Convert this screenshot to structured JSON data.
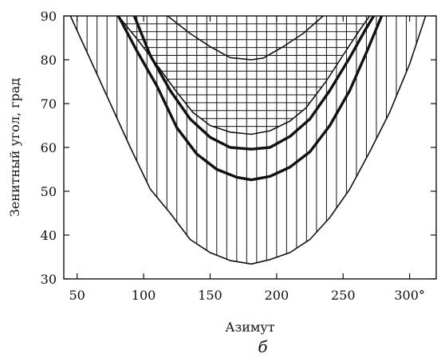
{
  "chart_data": {
    "type": "area",
    "title": "",
    "xlabel": "Азимут",
    "ylabel": "Зенитный угол, град",
    "panel_label": "б",
    "xlim": [
      40,
      320
    ],
    "ylim": [
      30,
      90
    ],
    "xticks": [
      50,
      100,
      150,
      200,
      250,
      300
    ],
    "xtick_labels": [
      "50",
      "100",
      "150",
      "200",
      "250",
      "300°"
    ],
    "yticks": [
      30,
      40,
      50,
      60,
      70,
      80,
      90
    ],
    "ytick_labels": [
      "30",
      "40",
      "50",
      "60",
      "70",
      "80",
      "90"
    ],
    "grid": false,
    "legend": "none",
    "color": "#111111",
    "series": [
      {
        "style": "thin-boundary",
        "hatch": "vertical",
        "points": [
          [
            45,
            90
          ],
          [
            60,
            80
          ],
          [
            75,
            70
          ],
          [
            90,
            60
          ],
          [
            105,
            50.5
          ],
          [
            120,
            45
          ],
          [
            135,
            39
          ],
          [
            150,
            36
          ],
          [
            165,
            34.2
          ],
          [
            181,
            33.4
          ],
          [
            195,
            34.4
          ],
          [
            210,
            36
          ],
          [
            225,
            39
          ],
          [
            240,
            44
          ],
          [
            255,
            50.5
          ],
          [
            270,
            59
          ],
          [
            285,
            68
          ],
          [
            300,
            79
          ],
          [
            312,
            90
          ]
        ]
      },
      {
        "style": "thin-boundary",
        "hatch": "horizontal",
        "points": [
          [
            81,
            90
          ],
          [
            97,
            84
          ],
          [
            112,
            78
          ],
          [
            124,
            73
          ],
          [
            137,
            68
          ],
          [
            150,
            65
          ],
          [
            165,
            63.5
          ],
          [
            181,
            63
          ],
          [
            195,
            63.8
          ],
          [
            210,
            66
          ],
          [
            222,
            69
          ],
          [
            237,
            75
          ],
          [
            252,
            82
          ],
          [
            263,
            87
          ],
          [
            270,
            90
          ]
        ]
      },
      {
        "style": "thin-boundary",
        "points": [
          [
            118,
            90
          ],
          [
            135,
            86
          ],
          [
            150,
            83
          ],
          [
            165,
            80.5
          ],
          [
            181,
            80
          ],
          [
            190,
            80.4
          ],
          [
            205,
            83
          ],
          [
            220,
            86
          ],
          [
            235,
            90
          ]
        ]
      },
      {
        "style": "thick-curve",
        "points": [
          [
            93,
            90
          ],
          [
            105,
            81
          ],
          [
            120,
            73
          ],
          [
            135,
            66.5
          ],
          [
            150,
            62.3
          ],
          [
            165,
            60
          ],
          [
            181,
            59.6
          ],
          [
            195,
            60
          ],
          [
            210,
            62.5
          ],
          [
            225,
            66.5
          ],
          [
            240,
            73
          ],
          [
            255,
            80.5
          ],
          [
            267,
            87
          ],
          [
            273,
            90
          ]
        ]
      },
      {
        "style": "thick-curve",
        "points": [
          [
            81,
            90
          ],
          [
            95,
            82
          ],
          [
            110,
            74
          ],
          [
            125,
            64.5
          ],
          [
            140,
            58.5
          ],
          [
            155,
            55
          ],
          [
            170,
            53.2
          ],
          [
            181,
            52.6
          ],
          [
            195,
            53.4
          ],
          [
            210,
            55.5
          ],
          [
            225,
            59
          ],
          [
            240,
            65
          ],
          [
            255,
            73
          ],
          [
            268,
            82
          ],
          [
            279,
            90
          ]
        ]
      }
    ]
  }
}
